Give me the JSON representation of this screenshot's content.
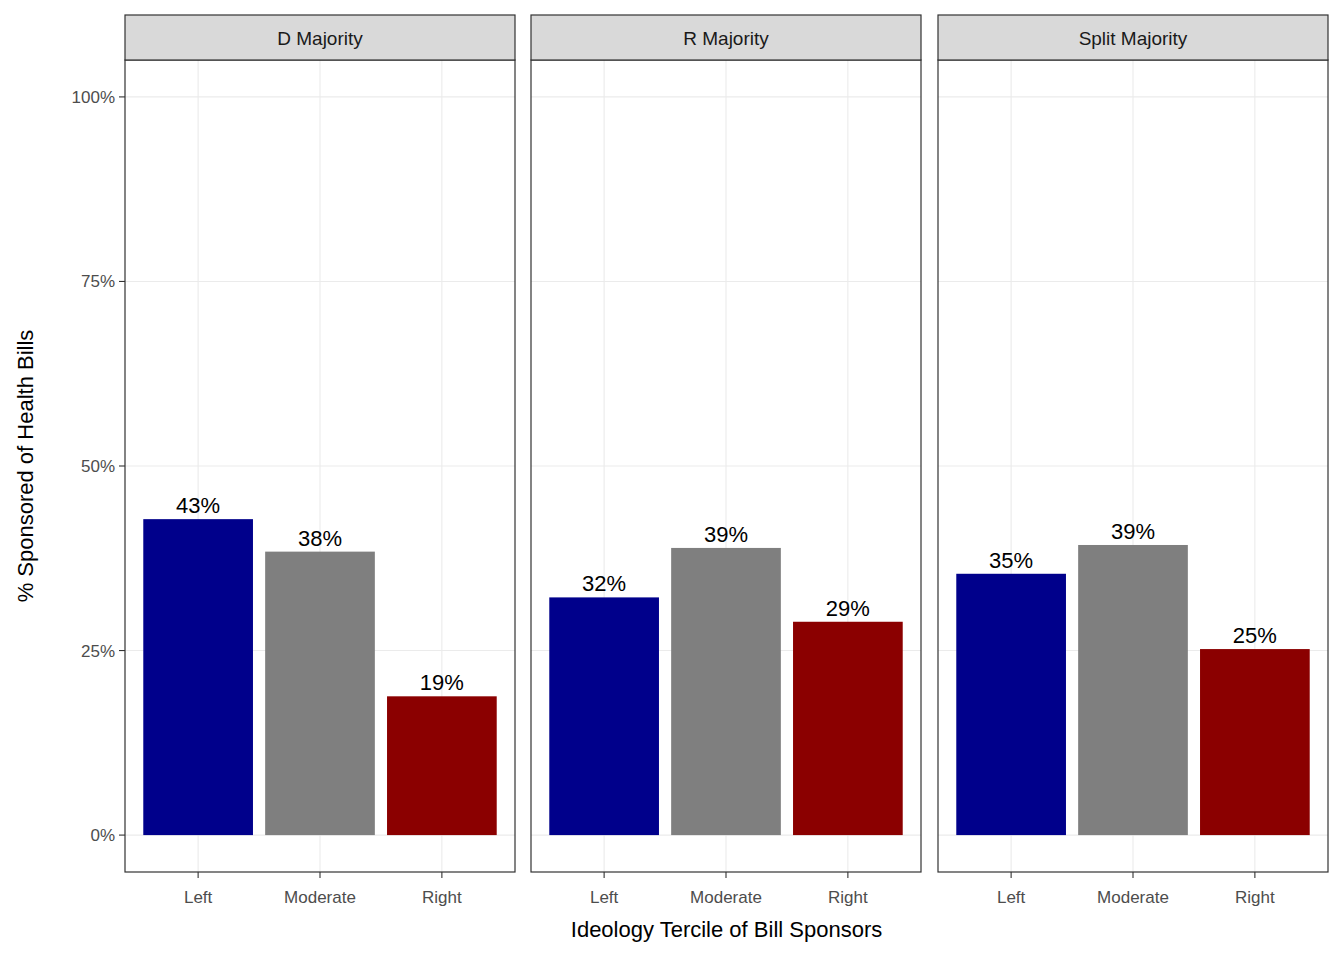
{
  "chart_data": [
    {
      "type": "bar",
      "title": "D Majority",
      "categories": [
        "Left",
        "Moderate",
        "Right"
      ],
      "values": [
        42.8,
        38.4,
        18.8
      ],
      "value_labels": [
        "43%",
        "38%",
        "19%"
      ],
      "colors": [
        "#00008b",
        "#7f7f7f",
        "#8b0000"
      ],
      "ylim": [
        -5,
        105
      ],
      "yticks": [
        {
          "value": 0,
          "label": "0%"
        },
        {
          "value": 25,
          "label": "25%"
        },
        {
          "value": 50,
          "label": "50%"
        },
        {
          "value": 75,
          "label": "75%"
        },
        {
          "value": 100,
          "label": "100%"
        }
      ],
      "y_label": "% Sponsored of Health Bills",
      "grid": true,
      "data_labels": true
    },
    {
      "type": "bar",
      "title": "R Majority",
      "categories": [
        "Left",
        "Moderate",
        "Right"
      ],
      "values": [
        32.2,
        38.9,
        28.9
      ],
      "value_labels": [
        "32%",
        "39%",
        "29%"
      ],
      "colors": [
        "#00008b",
        "#7f7f7f",
        "#8b0000"
      ],
      "ylim": [
        -5,
        105
      ],
      "yticks": [
        {
          "value": 0,
          "label": "0%"
        },
        {
          "value": 25,
          "label": "25%"
        },
        {
          "value": 50,
          "label": "50%"
        },
        {
          "value": 75,
          "label": "75%"
        },
        {
          "value": 100,
          "label": "100%"
        }
      ],
      "x_label": "Ideology Tercile of Bill Sponsors",
      "grid": true,
      "data_labels": true,
      "tick_labels": "x"
    },
    {
      "type": "bar",
      "title": "Split Majority",
      "categories": [
        "Left",
        "Moderate",
        "Right"
      ],
      "values": [
        35.4,
        39.3,
        25.2
      ],
      "value_labels": [
        "35%",
        "39%",
        "25%"
      ],
      "colors": [
        "#00008b",
        "#7f7f7f",
        "#8b0000"
      ],
      "ylim": [
        -5,
        105
      ],
      "yticks": [
        {
          "value": 0,
          "label": "0%"
        },
        {
          "value": 25,
          "label": "25%"
        },
        {
          "value": 50,
          "label": "50%"
        },
        {
          "value": 75,
          "label": "75%"
        },
        {
          "value": 100,
          "label": "100%"
        }
      ],
      "grid": true,
      "data_labels": true,
      "tick_labels": "x"
    }
  ]
}
